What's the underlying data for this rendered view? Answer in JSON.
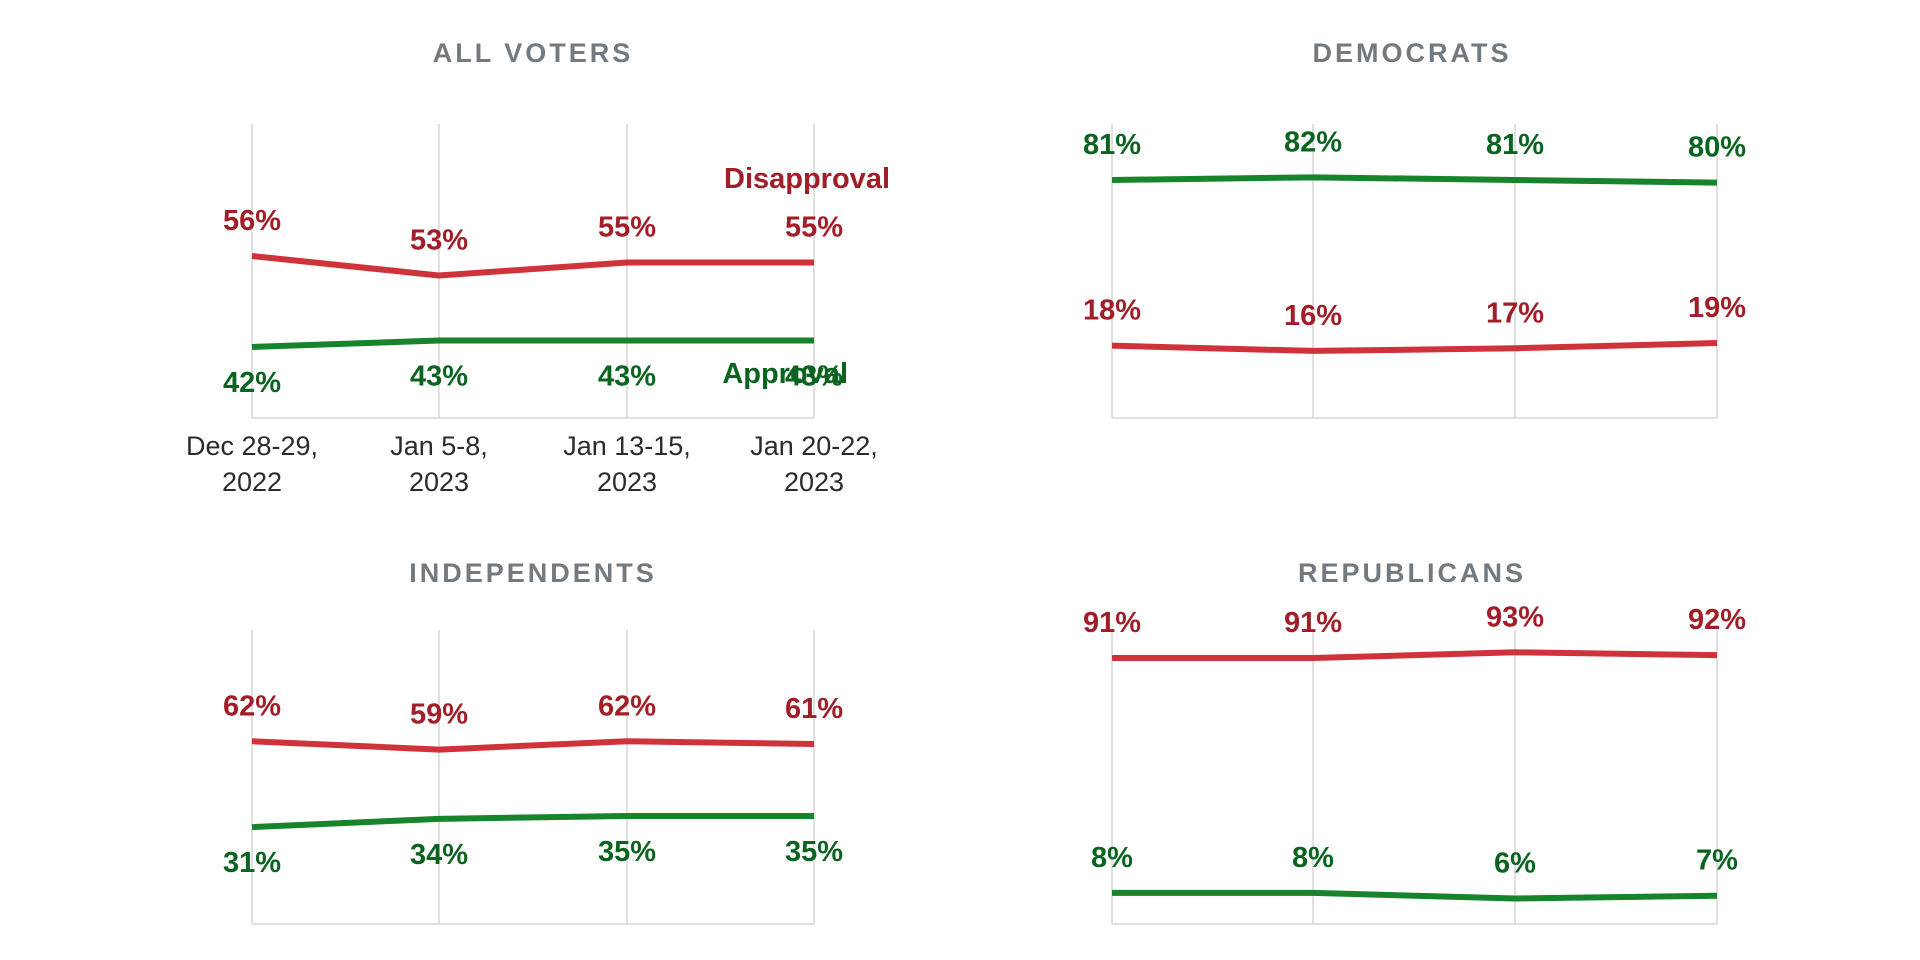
{
  "colors": {
    "disapproval": "#d0323a",
    "disapproval_text": "#a11d27",
    "approval": "#17832a",
    "approval_text": "#0b6320",
    "grid": "#d6d6d6",
    "title": "#727a80"
  },
  "chart_data": [
    {
      "type": "line",
      "title": "ALL VOTERS",
      "categories": [
        "Dec 28-29, 2022",
        "Jan 5-8, 2023",
        "Jan 13-15, 2023",
        "Jan 20-22, 2023"
      ],
      "category_lines": [
        [
          "Dec 28-29,",
          "2022"
        ],
        [
          "Jan 5-8,",
          "2023"
        ],
        [
          "Jan 13-15,",
          "2023"
        ],
        [
          "Jan 20-22,",
          "2023"
        ]
      ],
      "series": [
        {
          "name": "Disapproval",
          "key": "disapproval",
          "values": [
            56,
            53,
            55,
            55
          ],
          "labels": [
            "56%",
            "53%",
            "55%",
            "55%"
          ]
        },
        {
          "name": "Approval",
          "key": "approval",
          "values": [
            42,
            43,
            43,
            43
          ],
          "labels": [
            "42%",
            "43%",
            "43%",
            "43%"
          ]
        }
      ],
      "ylim": [
        20,
        75
      ]
    },
    {
      "type": "line",
      "title": "DEMOCRATS",
      "series": [
        {
          "key": "approval",
          "values": [
            81,
            82,
            81,
            80
          ],
          "labels": [
            "81%",
            "82%",
            "81%",
            "80%"
          ]
        },
        {
          "key": "disapproval",
          "values": [
            18,
            16,
            17,
            19
          ],
          "labels": [
            "18%",
            "16%",
            "17%",
            "19%"
          ]
        }
      ],
      "ylim": [
        0,
        100
      ]
    },
    {
      "type": "line",
      "title": "INDEPENDENTS",
      "series": [
        {
          "key": "disapproval",
          "values": [
            62,
            59,
            62,
            61
          ],
          "labels": [
            "62%",
            "59%",
            "62%",
            "61%"
          ]
        },
        {
          "key": "approval",
          "values": [
            31,
            34,
            35,
            35
          ],
          "labels": [
            "31%",
            "34%",
            "35%",
            "35%"
          ]
        }
      ],
      "ylim": [
        0,
        100
      ]
    },
    {
      "type": "line",
      "title": "REPUBLICANS",
      "series": [
        {
          "key": "disapproval",
          "values": [
            91,
            91,
            93,
            92
          ],
          "labels": [
            "91%",
            "91%",
            "93%",
            "92%"
          ]
        },
        {
          "key": "approval",
          "values": [
            8,
            8,
            6,
            7
          ],
          "labels": [
            "8%",
            "8%",
            "6%",
            "7%"
          ]
        }
      ],
      "ylim": [
        0,
        100
      ]
    }
  ]
}
